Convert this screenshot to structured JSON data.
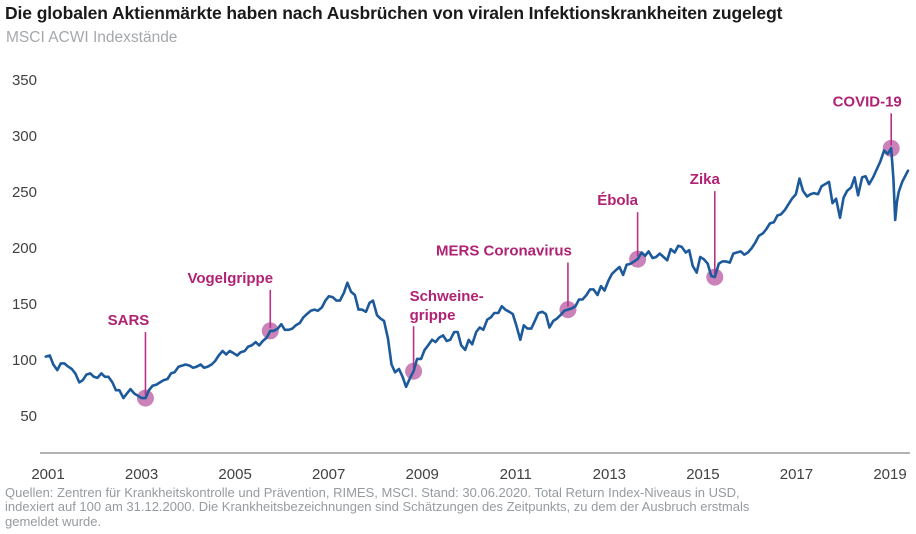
{
  "header": {
    "title": "Die globalen Aktienmärkte haben nach Ausbrüchen von viralen Infektionskrankheiten zugelegt",
    "subtitle": "MSCI ACWI Indexstände"
  },
  "footer": {
    "source_lines": [
      "Quellen: Zentren für Krankheitskontrolle und Prävention, RIMES, MSCI. Stand: 30.06.2020. Total Return Index-Niveaus in USD,",
      "indexiert auf 100 am 31.12.2000. Die Krankheitsbezeichnungen sind Schätzungen des Zeitpunkts, zu dem der Ausbruch erstmals",
      "gemeldet wurde."
    ]
  },
  "chart_data": {
    "type": "line",
    "title": "Die globalen Aktienmärkte haben nach Ausbrüchen von viralen Infektionskrankheiten zugelegt",
    "subtitle": "MSCI ACWI Indexstände",
    "xlabel": "",
    "ylabel": "",
    "xlim": [
      2000.9,
      2020.6
    ],
    "ylim": [
      50,
      350
    ],
    "grid": false,
    "x_ticks": [
      "2001",
      "2003",
      "2005",
      "2007",
      "2009",
      "2011",
      "2013",
      "2015",
      "2017",
      "2019"
    ],
    "y_ticks": [
      350,
      300,
      250,
      200,
      150,
      100,
      50
    ],
    "series": [
      {
        "name": "MSCI ACWI",
        "points": [
          [
            2000.95,
            103
          ],
          [
            2001.04,
            104
          ],
          [
            2001.12,
            96
          ],
          [
            2001.21,
            91
          ],
          [
            2001.29,
            97
          ],
          [
            2001.37,
            97
          ],
          [
            2001.46,
            94
          ],
          [
            2001.54,
            92
          ],
          [
            2001.62,
            88
          ],
          [
            2001.71,
            80
          ],
          [
            2001.79,
            82
          ],
          [
            2001.87,
            87
          ],
          [
            2001.96,
            88
          ],
          [
            2002.04,
            85
          ],
          [
            2002.12,
            84
          ],
          [
            2002.21,
            88
          ],
          [
            2002.29,
            85
          ],
          [
            2002.37,
            85
          ],
          [
            2002.46,
            80
          ],
          [
            2002.54,
            73
          ],
          [
            2002.62,
            73
          ],
          [
            2002.71,
            66
          ],
          [
            2002.79,
            70
          ],
          [
            2002.87,
            74
          ],
          [
            2002.96,
            70
          ],
          [
            2003.04,
            68
          ],
          [
            2003.12,
            66
          ],
          [
            2003.21,
            66
          ],
          [
            2003.29,
            73
          ],
          [
            2003.37,
            77
          ],
          [
            2003.46,
            78
          ],
          [
            2003.54,
            80
          ],
          [
            2003.62,
            82
          ],
          [
            2003.71,
            83
          ],
          [
            2003.79,
            88
          ],
          [
            2003.87,
            89
          ],
          [
            2003.96,
            94
          ],
          [
            2004.04,
            95
          ],
          [
            2004.12,
            96
          ],
          [
            2004.21,
            95
          ],
          [
            2004.29,
            93
          ],
          [
            2004.37,
            94
          ],
          [
            2004.46,
            96
          ],
          [
            2004.54,
            93
          ],
          [
            2004.62,
            94
          ],
          [
            2004.71,
            96
          ],
          [
            2004.79,
            99
          ],
          [
            2004.87,
            104
          ],
          [
            2004.96,
            108
          ],
          [
            2005.04,
            105
          ],
          [
            2005.12,
            108
          ],
          [
            2005.21,
            106
          ],
          [
            2005.29,
            104
          ],
          [
            2005.37,
            107
          ],
          [
            2005.46,
            108
          ],
          [
            2005.54,
            112
          ],
          [
            2005.62,
            113
          ],
          [
            2005.71,
            116
          ],
          [
            2005.79,
            113
          ],
          [
            2005.87,
            117
          ],
          [
            2005.96,
            120
          ],
          [
            2006.04,
            126
          ],
          [
            2006.12,
            126
          ],
          [
            2006.21,
            128
          ],
          [
            2006.29,
            132
          ],
          [
            2006.37,
            127
          ],
          [
            2006.46,
            127
          ],
          [
            2006.54,
            128
          ],
          [
            2006.62,
            131
          ],
          [
            2006.71,
            133
          ],
          [
            2006.79,
            138
          ],
          [
            2006.87,
            141
          ],
          [
            2006.96,
            144
          ],
          [
            2007.04,
            145
          ],
          [
            2007.12,
            144
          ],
          [
            2007.21,
            147
          ],
          [
            2007.29,
            153
          ],
          [
            2007.37,
            157
          ],
          [
            2007.46,
            156
          ],
          [
            2007.54,
            153
          ],
          [
            2007.62,
            153
          ],
          [
            2007.71,
            160
          ],
          [
            2007.79,
            169
          ],
          [
            2007.87,
            161
          ],
          [
            2007.96,
            158
          ],
          [
            2008.04,
            145
          ],
          [
            2008.12,
            145
          ],
          [
            2008.21,
            143
          ],
          [
            2008.29,
            151
          ],
          [
            2008.37,
            153
          ],
          [
            2008.46,
            140
          ],
          [
            2008.54,
            137
          ],
          [
            2008.62,
            135
          ],
          [
            2008.71,
            119
          ],
          [
            2008.79,
            96
          ],
          [
            2008.87,
            89
          ],
          [
            2008.96,
            92
          ],
          [
            2009.04,
            85
          ],
          [
            2009.12,
            76
          ],
          [
            2009.21,
            84
          ],
          [
            2009.29,
            90
          ],
          [
            2009.37,
            101
          ],
          [
            2009.46,
            101
          ],
          [
            2009.54,
            109
          ],
          [
            2009.62,
            113
          ],
          [
            2009.71,
            118
          ],
          [
            2009.79,
            116
          ],
          [
            2009.87,
            120
          ],
          [
            2009.96,
            122
          ],
          [
            2010.04,
            117
          ],
          [
            2010.12,
            118
          ],
          [
            2010.21,
            125
          ],
          [
            2010.29,
            125
          ],
          [
            2010.37,
            113
          ],
          [
            2010.46,
            109
          ],
          [
            2010.54,
            118
          ],
          [
            2010.62,
            114
          ],
          [
            2010.71,
            125
          ],
          [
            2010.79,
            129
          ],
          [
            2010.87,
            127
          ],
          [
            2010.96,
            136
          ],
          [
            2011.04,
            138
          ],
          [
            2011.12,
            142
          ],
          [
            2011.21,
            142
          ],
          [
            2011.29,
            148
          ],
          [
            2011.37,
            145
          ],
          [
            2011.46,
            143
          ],
          [
            2011.54,
            141
          ],
          [
            2011.62,
            131
          ],
          [
            2011.71,
            118
          ],
          [
            2011.79,
            131
          ],
          [
            2011.87,
            128
          ],
          [
            2011.96,
            128
          ],
          [
            2012.04,
            135
          ],
          [
            2012.12,
            142
          ],
          [
            2012.21,
            143
          ],
          [
            2012.29,
            141
          ],
          [
            2012.37,
            129
          ],
          [
            2012.46,
            135
          ],
          [
            2012.54,
            137
          ],
          [
            2012.62,
            140
          ],
          [
            2012.71,
            144
          ],
          [
            2012.79,
            145
          ],
          [
            2012.87,
            146
          ],
          [
            2012.96,
            148
          ],
          [
            2013.04,
            154
          ],
          [
            2013.12,
            154
          ],
          [
            2013.21,
            158
          ],
          [
            2013.29,
            163
          ],
          [
            2013.37,
            163
          ],
          [
            2013.46,
            158
          ],
          [
            2013.54,
            166
          ],
          [
            2013.62,
            162
          ],
          [
            2013.71,
            171
          ],
          [
            2013.79,
            177
          ],
          [
            2013.87,
            180
          ],
          [
            2013.96,
            183
          ],
          [
            2014.04,
            176
          ],
          [
            2014.12,
            185
          ],
          [
            2014.21,
            186
          ],
          [
            2014.29,
            188
          ],
          [
            2014.37,
            190
          ],
          [
            2014.46,
            196
          ],
          [
            2014.54,
            193
          ],
          [
            2014.62,
            197
          ],
          [
            2014.71,
            191
          ],
          [
            2014.79,
            192
          ],
          [
            2014.87,
            195
          ],
          [
            2014.96,
            192
          ],
          [
            2015.04,
            189
          ],
          [
            2015.12,
            199
          ],
          [
            2015.21,
            196
          ],
          [
            2015.29,
            202
          ],
          [
            2015.37,
            201
          ],
          [
            2015.46,
            196
          ],
          [
            2015.54,
            198
          ],
          [
            2015.62,
            184
          ],
          [
            2015.71,
            178
          ],
          [
            2015.79,
            192
          ],
          [
            2015.87,
            190
          ],
          [
            2015.96,
            186
          ],
          [
            2016.04,
            175
          ],
          [
            2016.12,
            174
          ],
          [
            2016.21,
            186
          ],
          [
            2016.29,
            188
          ],
          [
            2016.37,
            188
          ],
          [
            2016.46,
            187
          ],
          [
            2016.54,
            195
          ],
          [
            2016.62,
            196
          ],
          [
            2016.71,
            197
          ],
          [
            2016.79,
            194
          ],
          [
            2016.87,
            196
          ],
          [
            2016.96,
            200
          ],
          [
            2017.04,
            205
          ],
          [
            2017.12,
            211
          ],
          [
            2017.21,
            213
          ],
          [
            2017.29,
            217
          ],
          [
            2017.37,
            222
          ],
          [
            2017.46,
            223
          ],
          [
            2017.54,
            229
          ],
          [
            2017.62,
            230
          ],
          [
            2017.71,
            234
          ],
          [
            2017.79,
            239
          ],
          [
            2017.87,
            244
          ],
          [
            2017.96,
            248
          ],
          [
            2018.04,
            262
          ],
          [
            2018.12,
            251
          ],
          [
            2018.21,
            246
          ],
          [
            2018.29,
            248
          ],
          [
            2018.37,
            249
          ],
          [
            2018.46,
            248
          ],
          [
            2018.54,
            255
          ],
          [
            2018.62,
            257
          ],
          [
            2018.71,
            259
          ],
          [
            2018.79,
            240
          ],
          [
            2018.87,
            244
          ],
          [
            2018.96,
            227
          ],
          [
            2019.04,
            245
          ],
          [
            2019.12,
            251
          ],
          [
            2019.21,
            254
          ],
          [
            2019.29,
            263
          ],
          [
            2019.37,
            247
          ],
          [
            2019.46,
            263
          ],
          [
            2019.54,
            264
          ],
          [
            2019.62,
            257
          ],
          [
            2019.71,
            263
          ],
          [
            2019.79,
            270
          ],
          [
            2019.87,
            277
          ],
          [
            2019.96,
            287
          ],
          [
            2020.04,
            284
          ],
          [
            2020.12,
            289
          ],
          [
            2020.17,
            262
          ],
          [
            2020.21,
            225
          ],
          [
            2020.25,
            241
          ],
          [
            2020.29,
            250
          ],
          [
            2020.37,
            259
          ],
          [
            2020.46,
            266
          ],
          [
            2020.5,
            269
          ]
        ]
      }
    ],
    "annotations": [
      {
        "lines": [
          "SARS"
        ],
        "year": 2003.21,
        "value": 66,
        "line_len": 66,
        "label_dx": -17,
        "align": "center"
      },
      {
        "lines": [
          "Vogelgrippe"
        ],
        "year": 2006.04,
        "value": 126,
        "line_len": 41,
        "label_dx": -40,
        "align": "center"
      },
      {
        "lines": [
          "Schweine-",
          "grippe"
        ],
        "year": 2009.29,
        "value": 90,
        "line_len": 45,
        "label_dx": -4,
        "align": "left"
      },
      {
        "lines": [
          "MERS Coronavirus"
        ],
        "year": 2012.79,
        "value": 145,
        "line_len": 47,
        "label_dx": -64,
        "align": "center"
      },
      {
        "lines": [
          "Ébola"
        ],
        "year": 2014.37,
        "value": 190,
        "line_len": 47,
        "label_dx": -20,
        "align": "center"
      },
      {
        "lines": [
          "Zika"
        ],
        "year": 2016.12,
        "value": 174,
        "line_len": 86,
        "label_dx": -10,
        "align": "center"
      },
      {
        "lines": [
          "COVID-19"
        ],
        "year": 2020.12,
        "value": 289,
        "line_len": 35,
        "label_dx": -24,
        "align": "center"
      }
    ],
    "colors": {
      "line": "#1d5a9b",
      "annotation_text": "#b02273",
      "callout_line": "#b83288",
      "dot": "#bd63a8",
      "axis": "#b3b3b3",
      "tick_text": "#3f4143"
    },
    "legend": "none"
  }
}
